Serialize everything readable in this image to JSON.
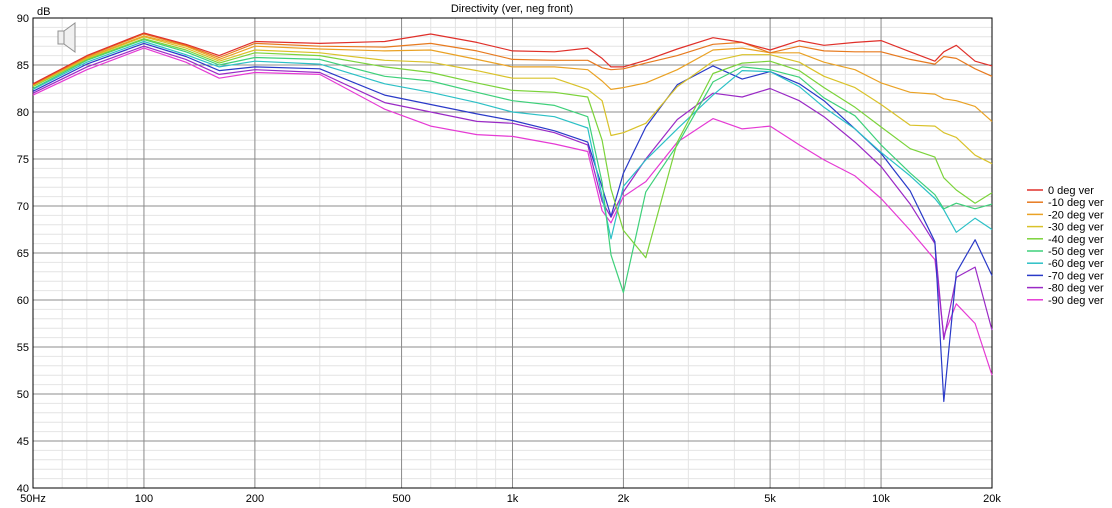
{
  "chart_data": {
    "type": "line",
    "title": "Directivity (ver, neg front)",
    "ylabel": "dB",
    "xlabel": "",
    "xscale": "log",
    "xlim": [
      50,
      20000
    ],
    "ylim": [
      40,
      90
    ],
    "grid": true,
    "legend_position": "right",
    "x_ticks": [
      {
        "value": 50,
        "label": "50Hz"
      },
      {
        "value": 100,
        "label": "100"
      },
      {
        "value": 200,
        "label": "200"
      },
      {
        "value": 500,
        "label": "500"
      },
      {
        "value": 1000,
        "label": "1k"
      },
      {
        "value": 2000,
        "label": "2k"
      },
      {
        "value": 5000,
        "label": "5k"
      },
      {
        "value": 10000,
        "label": "10k"
      },
      {
        "value": 20000,
        "label": "20k"
      }
    ],
    "y_ticks": [
      {
        "value": 40,
        "label": "40"
      },
      {
        "value": 45,
        "label": "45"
      },
      {
        "value": 50,
        "label": "50"
      },
      {
        "value": 55,
        "label": "55"
      },
      {
        "value": 60,
        "label": "60"
      },
      {
        "value": 65,
        "label": "65"
      },
      {
        "value": 70,
        "label": "70"
      },
      {
        "value": 75,
        "label": "75"
      },
      {
        "value": 80,
        "label": "80"
      },
      {
        "value": 85,
        "label": "85"
      },
      {
        "value": 90,
        "label": "90"
      }
    ],
    "x": [
      50,
      70,
      100,
      130,
      160,
      200,
      300,
      450,
      600,
      800,
      1000,
      1300,
      1600,
      1750,
      1850,
      2000,
      2300,
      2800,
      3500,
      4200,
      5000,
      6000,
      7000,
      8500,
      10000,
      12000,
      14000,
      14800,
      16000,
      18000,
      20000
    ],
    "series": [
      {
        "name": "0 deg ver",
        "color": "#e0302a",
        "values": [
          83,
          86,
          88.4,
          87.2,
          86,
          87.5,
          87.3,
          87.5,
          88.3,
          87.4,
          86.5,
          86.4,
          86.8,
          85.7,
          84.8,
          84.8,
          85.5,
          86.7,
          87.9,
          87.4,
          86.6,
          87.6,
          87.1,
          87.4,
          87.6,
          86.4,
          85.4,
          86.4,
          87.1,
          85.4,
          84.9
        ]
      },
      {
        "name": "-10 deg ver",
        "color": "#e77a1f",
        "values": [
          82.9,
          85.9,
          88.3,
          87.1,
          85.8,
          87.3,
          87,
          86.9,
          87.3,
          86.5,
          85.6,
          85.5,
          85.5,
          84.7,
          84.5,
          84.6,
          85.2,
          86,
          87.2,
          87.4,
          86.3,
          87,
          86.5,
          86.4,
          86.4,
          85.6,
          85.1,
          85.9,
          85.7,
          84.6,
          83.8
        ]
      },
      {
        "name": "-20 deg ver",
        "color": "#eaa225",
        "values": [
          82.9,
          85.8,
          88.1,
          87,
          85.6,
          87,
          86.7,
          86.5,
          86.6,
          85.6,
          84.8,
          84.8,
          84.5,
          83.3,
          82.4,
          82.6,
          83.1,
          84.5,
          86.6,
          86.8,
          86.3,
          86.3,
          85.3,
          84.5,
          83.1,
          82.1,
          81.9,
          81.4,
          81.2,
          80.6,
          79
        ]
      },
      {
        "name": "-30 deg ver",
        "color": "#d9c22a",
        "values": [
          82.8,
          85.7,
          88,
          86.8,
          85.4,
          86.6,
          86.3,
          85.5,
          85.3,
          84.4,
          83.6,
          83.6,
          82.4,
          81.2,
          77.5,
          77.8,
          78.8,
          82.7,
          85.4,
          86.1,
          86.1,
          85.3,
          83.8,
          82.6,
          80.8,
          78.6,
          78.5,
          77.8,
          77.3,
          75.4,
          74.5
        ]
      },
      {
        "name": "-40 deg ver",
        "color": "#7bd33a",
        "values": [
          82.7,
          85.6,
          87.8,
          86.6,
          85.2,
          86.3,
          86,
          84.8,
          84.2,
          83.1,
          82.3,
          82.1,
          81.6,
          77,
          71.8,
          67.4,
          64.5,
          76.8,
          84.1,
          85.2,
          85.4,
          84.4,
          82.6,
          80.5,
          78.4,
          76.1,
          75.2,
          73,
          71.7,
          70.3,
          71.4
        ]
      },
      {
        "name": "-50 deg ver",
        "color": "#3ed07a",
        "values": [
          82.5,
          85.5,
          87.7,
          86.4,
          85,
          85.8,
          85.6,
          83.8,
          83.3,
          82.1,
          81.2,
          80.7,
          79.5,
          72.5,
          64.8,
          60.8,
          71.5,
          76.5,
          83.2,
          84.8,
          84.5,
          83.7,
          81.5,
          79.6,
          76.5,
          73.5,
          71.2,
          69.7,
          70.3,
          69.7,
          70.2
        ]
      },
      {
        "name": "-60 deg ver",
        "color": "#2cc0c6",
        "values": [
          82.4,
          85.3,
          87.5,
          86.1,
          84.8,
          85.4,
          85.1,
          83,
          82.1,
          81,
          80,
          79.5,
          78.3,
          71,
          66.5,
          72.1,
          74.9,
          78.2,
          81.8,
          84.4,
          84.3,
          82.7,
          80.5,
          78.2,
          75.7,
          73.2,
          70.8,
          69.6,
          67.2,
          68.7,
          67.5
        ]
      },
      {
        "name": "-70 deg ver",
        "color": "#2a3ac8",
        "values": [
          82.2,
          85.1,
          87.3,
          85.9,
          84.4,
          84.8,
          84.6,
          81.8,
          80.8,
          79.8,
          79.1,
          78,
          76.8,
          72,
          68.9,
          73.5,
          78.4,
          82.9,
          84.9,
          83.5,
          84.3,
          83,
          81.2,
          78.2,
          75.6,
          71.6,
          66.2,
          49.2,
          62.9,
          66.4,
          62.6
        ]
      },
      {
        "name": "-80 deg ver",
        "color": "#9a2ac6",
        "values": [
          82,
          84.8,
          87,
          85.6,
          84,
          84.5,
          84.2,
          81,
          80,
          79,
          78.8,
          77.8,
          76.5,
          70.5,
          68.8,
          71.5,
          75,
          79.2,
          82,
          81.6,
          82.5,
          81.2,
          79.5,
          76.8,
          74.2,
          70.2,
          66,
          55.8,
          62.4,
          63.5,
          56.8
        ]
      },
      {
        "name": "-90 deg ver",
        "color": "#e53ad4",
        "values": [
          81.8,
          84.5,
          86.8,
          85.3,
          83.6,
          84.2,
          84,
          80.3,
          78.5,
          77.6,
          77.4,
          76.6,
          75.8,
          69.5,
          68.2,
          71,
          72.6,
          76.8,
          79.3,
          78.2,
          78.5,
          76.5,
          74.9,
          73.2,
          70.8,
          67.4,
          64.3,
          56.2,
          59.6,
          57.5,
          52
        ]
      }
    ]
  }
}
